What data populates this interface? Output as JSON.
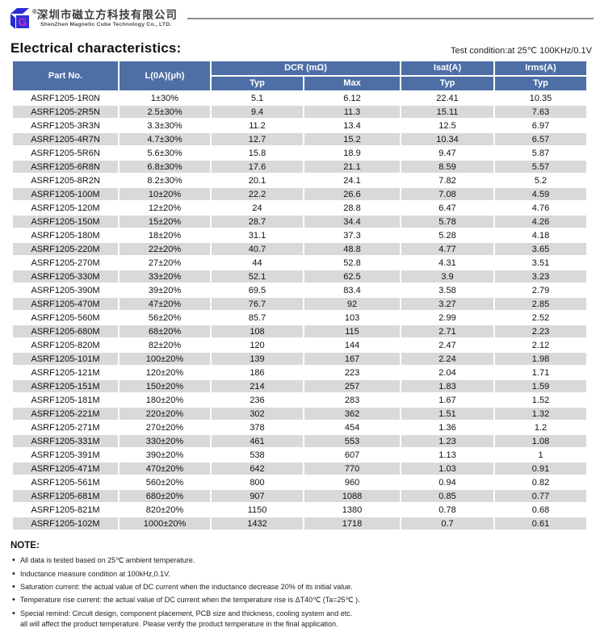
{
  "company": {
    "registered_mark": "®",
    "name_cn": "深圳市磁立方科技有限公司",
    "name_en": "ShenZhen Magnetic Cube Technology Co., LTD.",
    "logo_letter": "G"
  },
  "page": {
    "title": "Electrical characteristics:",
    "test_condition": "Test condition:at 25℃  100KHz/0.1V"
  },
  "table": {
    "columns": {
      "part_no": "Part No.",
      "l0a": "L(0A)(μh)",
      "dcr": "DCR (mΩ)",
      "typ": "Typ",
      "max": "Max",
      "isat": "Isat(A)",
      "irms": "Irms(A)"
    },
    "rows": [
      [
        "ASRF1205-1R0N",
        "1±30%",
        "5.1",
        "6.12",
        "22.41",
        "10.35"
      ],
      [
        "ASRF1205-2R5N",
        "2.5±30%",
        "9.4",
        "11.3",
        "15.11",
        "7.63"
      ],
      [
        "ASRF1205-3R3N",
        "3.3±30%",
        "11.2",
        "13.4",
        "12.5",
        "6.97"
      ],
      [
        "ASRF1205-4R7N",
        "4.7±30%",
        "12.7",
        "15.2",
        "10.34",
        "6.57"
      ],
      [
        "ASRF1205-5R6N",
        "5.6±30%",
        "15.8",
        "18.9",
        "9.47",
        "5.87"
      ],
      [
        "ASRF1205-6R8N",
        "6.8±30%",
        "17.6",
        "21.1",
        "8.59",
        "5.57"
      ],
      [
        "ASRF1205-8R2N",
        "8.2±30%",
        "20.1",
        "24.1",
        "7.82",
        "5.2"
      ],
      [
        "ASRF1205-100M",
        "10±20%",
        "22.2",
        "26.6",
        "7.08",
        "4.59"
      ],
      [
        "ASRF1205-120M",
        "12±20%",
        "24",
        "28.8",
        "6.47",
        "4.76"
      ],
      [
        "ASRF1205-150M",
        "15±20%",
        "28.7",
        "34.4",
        "5.78",
        "4.26"
      ],
      [
        "ASRF1205-180M",
        "18±20%",
        "31.1",
        "37.3",
        "5.28",
        "4.18"
      ],
      [
        "ASRF1205-220M",
        "22±20%",
        "40.7",
        "48.8",
        "4.77",
        "3.65"
      ],
      [
        "ASRF1205-270M",
        "27±20%",
        "44",
        "52.8",
        "4.31",
        "3.51"
      ],
      [
        "ASRF1205-330M",
        "33±20%",
        "52.1",
        "62.5",
        "3.9",
        "3.23"
      ],
      [
        "ASRF1205-390M",
        "39±20%",
        "69.5",
        "83.4",
        "3.58",
        "2.79"
      ],
      [
        "ASRF1205-470M",
        "47±20%",
        "76.7",
        "92",
        "3.27",
        "2.85"
      ],
      [
        "ASRF1205-560M",
        "56±20%",
        "85.7",
        "103",
        "2.99",
        "2.52"
      ],
      [
        "ASRF1205-680M",
        "68±20%",
        "108",
        "115",
        "2.71",
        "2.23"
      ],
      [
        "ASRF1205-820M",
        "82±20%",
        "120",
        "144",
        "2.47",
        "2.12"
      ],
      [
        "ASRF1205-101M",
        "100±20%",
        "139",
        "167",
        "2.24",
        "1.98"
      ],
      [
        "ASRF1205-121M",
        "120±20%",
        "186",
        "223",
        "2.04",
        "1.71"
      ],
      [
        "ASRF1205-151M",
        "150±20%",
        "214",
        "257",
        "1.83",
        "1.59"
      ],
      [
        "ASRF1205-181M",
        "180±20%",
        "236",
        "283",
        "1.67",
        "1.52"
      ],
      [
        "ASRF1205-221M",
        "220±20%",
        "302",
        "362",
        "1.51",
        "1.32"
      ],
      [
        "ASRF1205-271M",
        "270±20%",
        "378",
        "454",
        "1.36",
        "1.2"
      ],
      [
        "ASRF1205-331M",
        "330±20%",
        "461",
        "553",
        "1.23",
        "1.08"
      ],
      [
        "ASRF1205-391M",
        "390±20%",
        "538",
        "607",
        "1.13",
        "1"
      ],
      [
        "ASRF1205-471M",
        "470±20%",
        "642",
        "770",
        "1.03",
        "0.91"
      ],
      [
        "ASRF1205-561M",
        "560±20%",
        "800",
        "960",
        "0.94",
        "0.82"
      ],
      [
        "ASRF1205-681M",
        "680±20%",
        "907",
        "1088",
        "0.85",
        "0.77"
      ],
      [
        "ASRF1205-821M",
        "820±20%",
        "1150",
        "1380",
        "0.78",
        "0.68"
      ],
      [
        "ASRF1205-102M",
        "1000±20%",
        "1432",
        "1718",
        "0.7",
        "0.61"
      ]
    ]
  },
  "note": {
    "title": "NOTE:",
    "items": [
      "All data is tested based on 25℃ ambient temperature.",
      "Inductance measure condition at 100kHz,0.1V.",
      "Saturation current: the actual value of DC current when the inductance decrease 20% of its initial value.",
      "Temperature rise current: the actual value of DC current when the temperature rise is ΔT40℃ (Ta=25℃ ).",
      "Special remind: Circuit design, component placement, PCB size and thickness, cooling system and etc."
    ],
    "continuation": "all will affect the product temperature. Please verify the product temperature in the final application."
  },
  "colors": {
    "table_header_blue": "#4d6fa6",
    "row_alt_gray": "#d9d9d9",
    "divider_gray": "#8f8f8f",
    "logo_blue": "#2a2ad2",
    "logo_magenta": "#c22cc2"
  }
}
